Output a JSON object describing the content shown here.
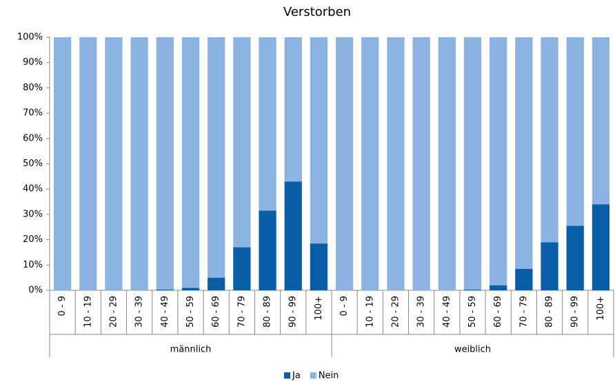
{
  "chart_data": {
    "type": "stacked_bar_100",
    "title": "Verstorben",
    "groups": [
      {
        "label": "männlich",
        "categories": [
          "0 - 9",
          "10 - 19",
          "20 - 29",
          "30 - 39",
          "40 - 49",
          "50 - 59",
          "60 - 69",
          "70 - 79",
          "80 - 89",
          "90 - 99",
          "100+"
        ]
      },
      {
        "label": "weiblich",
        "categories": [
          "0 - 9",
          "10 - 19",
          "20 - 29",
          "30 - 39",
          "40 - 49",
          "50 - 59",
          "60 - 69",
          "70 - 79",
          "80 - 89",
          "90 - 99",
          "100+"
        ]
      }
    ],
    "series": [
      {
        "name": "Ja",
        "color": "#0a5ea8",
        "values": [
          0,
          0,
          0,
          0,
          0.3,
          1,
          5,
          17,
          31.5,
          43,
          18.5,
          0,
          0,
          0,
          0,
          0,
          0.3,
          2,
          8.5,
          19,
          25.5,
          34
        ]
      },
      {
        "name": "Nein",
        "color": "#8db3e2",
        "values": [
          100,
          100,
          100,
          100,
          99.7,
          99,
          95,
          83,
          68.5,
          57,
          81.5,
          100,
          100,
          100,
          100,
          100,
          99.7,
          98,
          91.5,
          81,
          74.5,
          66
        ]
      }
    ],
    "ylim": [
      0,
      100
    ],
    "yticks": [
      {
        "value": 0,
        "label": "0%"
      },
      {
        "value": 10,
        "label": "10%"
      },
      {
        "value": 20,
        "label": "20%"
      },
      {
        "value": 30,
        "label": "30%"
      },
      {
        "value": 40,
        "label": "40%"
      },
      {
        "value": 50,
        "label": "50%"
      },
      {
        "value": 60,
        "label": "60%"
      },
      {
        "value": 70,
        "label": "70%"
      },
      {
        "value": 80,
        "label": "80%"
      },
      {
        "value": 90,
        "label": "90%"
      },
      {
        "value": 100,
        "label": "100%"
      }
    ],
    "grid": false,
    "legend": "bottom"
  }
}
